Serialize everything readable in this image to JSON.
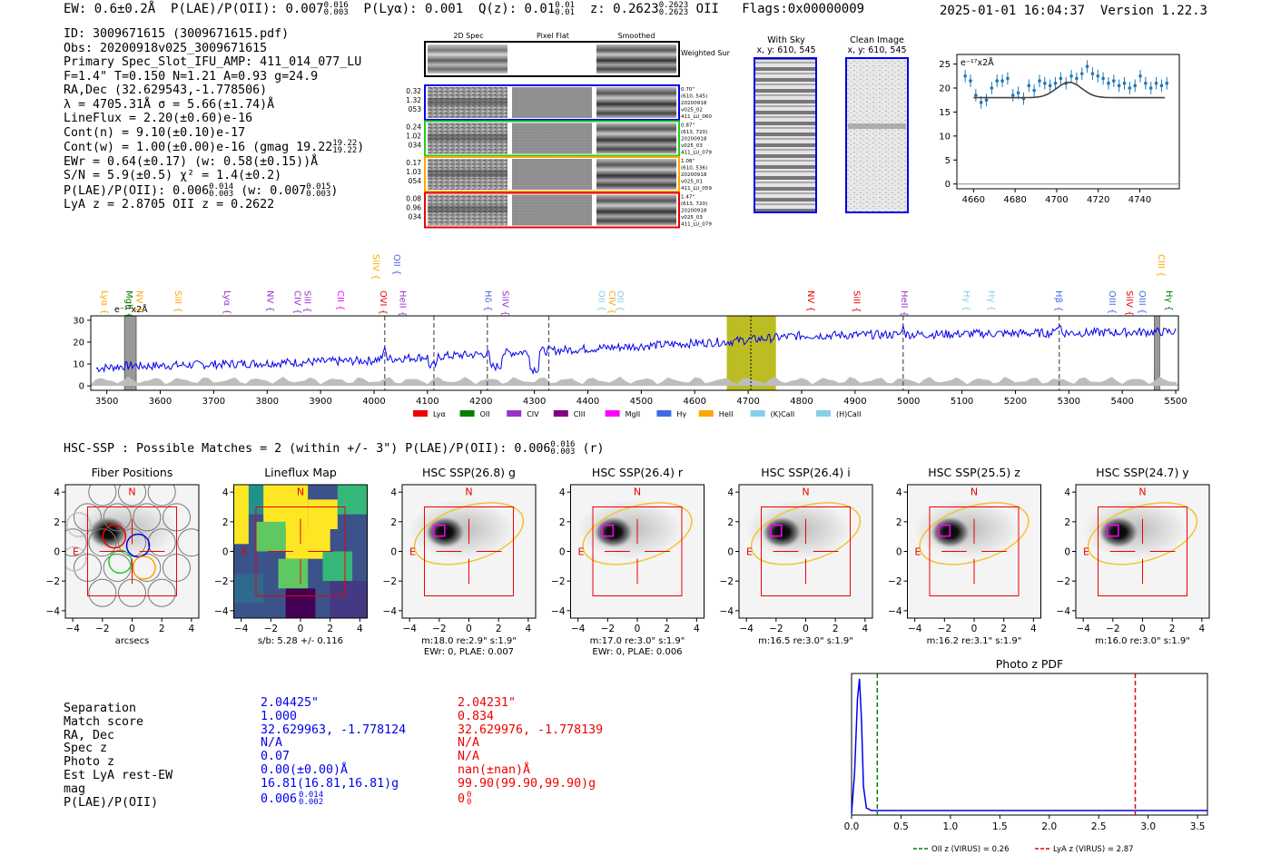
{
  "header": {
    "ew": "EW: 0.6±0.2Å",
    "plae": "P(LAE)/P(OII): 0.007",
    "plae_hi": "0.016",
    "plae_lo": "0.003",
    "plya": "P(Lyα): 0.001",
    "qz": "Q(z): 0.01",
    "qz_hi": "0.01",
    "qz_lo": "0.01",
    "z": "z: 0.2623",
    "z_hi": "0.2623",
    "z_lo": "0.2623",
    "z_line": "OII",
    "flags": "Flags:0x00000009",
    "datetime": "2025-01-01 16:04:37",
    "version": "Version 1.22.3"
  },
  "info": {
    "id": "ID: 3009671615 (3009671615.pdf)",
    "obs": "Obs: 20200918v025_3009671615",
    "primary": "Primary Spec_Slot_IFU_AMP: 411_014_077_LU",
    "fit": "F=1.4\"  T=0.150  N=1.21  A=0.93  g=24.9",
    "radec": "RA,Dec (32.629543,-1.778506)",
    "lambda": "λ = 4705.31Å  σ = 5.66(±1.74)Å",
    "lineflux": "LineFlux = 2.20(±0.60)e-16",
    "contn": "Cont(n) = 9.10(±0.10)e-17",
    "contw": "Cont(w) = 1.00(±0.00)e-16 (gmag 19.22",
    "contw_hi": "19.22",
    "contw_lo": "19.22",
    "ewr": "EWr = 0.64(±0.17) (w: 0.58(±0.15))Å",
    "sn": "S/N = 5.9(±0.5)  χ² = 1.4(±0.2)",
    "plae": "P(LAE)/P(OII): 0.006",
    "plae_a_hi": "0.014",
    "plae_a_lo": "0.003",
    "plae_w": "(w: 0.007",
    "plae_b_hi": "0.015",
    "plae_b_lo": "0.003",
    "lyaz": "LyA z = 2.8705   OII z = 0.2622"
  },
  "cutouts": {
    "col_labels": [
      "2D Spec",
      "Pixel Flat",
      "Smoothed"
    ],
    "weighted_label": "Weighted Sum",
    "rows": [
      {
        "left": [
          "0.32",
          "1.32",
          "053"
        ],
        "right": [
          "0.70\"",
          "(610, 545)",
          "20200918",
          "v025_02",
          "411_LU_060"
        ],
        "color": "#0000ee"
      },
      {
        "left": [
          "0.24",
          "1.02",
          "034"
        ],
        "right": [
          "0.87\"",
          "(613, 720)",
          "20200918",
          "v025_03",
          "411_LU_079"
        ],
        "color": "#22cc22"
      },
      {
        "left": [
          "0.17",
          "1.03",
          "054"
        ],
        "right": [
          "1.08\"",
          "(610, 536)",
          "20200918",
          "v025_01",
          "411_LU_059"
        ],
        "color": "#ffa500"
      },
      {
        "left": [
          "0.08",
          "0.96",
          "034"
        ],
        "right": [
          "1.47\"",
          "(613, 720)",
          "20200918",
          "v025_03",
          "411_LU_079"
        ],
        "color": "#ee0000"
      }
    ],
    "with_sky": [
      "With Sky",
      "x, y: 610, 545"
    ],
    "clean_image": [
      "Clean Image",
      "x, y: 610, 545"
    ]
  },
  "zoom_chart": {
    "unit": "e⁻¹⁷x2Å",
    "x_ticks": [
      4660,
      4680,
      4700,
      4720,
      4740
    ],
    "y_ticks": [
      0,
      5,
      10,
      15,
      20,
      25
    ],
    "xlim": [
      4652,
      4759
    ],
    "ylim": [
      -1,
      27
    ],
    "data_y": [
      22.5,
      21.5,
      18.5,
      17,
      17.5,
      20,
      21.5,
      21.5,
      22,
      18.5,
      19,
      17.8,
      20.5,
      19.5,
      21.5,
      21,
      20.5,
      21,
      22,
      21,
      22.5,
      22,
      23,
      24.5,
      23,
      22.5,
      22,
      21,
      21.5,
      20.5,
      21,
      20,
      20.5,
      22.5,
      21,
      20,
      21,
      20.5,
      21
    ],
    "fit_baseline": 18,
    "fit_peak": 21.2,
    "fit_center": 4706,
    "fit_sigma": 6
  },
  "spectrum": {
    "unit": "e⁻¹⁷x2Å",
    "x_ticks": [
      3500,
      3600,
      3700,
      3800,
      3900,
      4000,
      4100,
      4200,
      4300,
      4400,
      4500,
      4600,
      4700,
      4800,
      4900,
      5000,
      5100,
      5200,
      5300,
      5400,
      5500
    ],
    "y_ticks": [
      0,
      10,
      20,
      30
    ],
    "xlim": [
      3470,
      5505
    ],
    "ylim": [
      -2,
      32
    ],
    "highlight": [
      4660,
      4752
    ],
    "center_line": 4705,
    "dashed_lines": [
      4020,
      4112,
      4212,
      4327,
      4990,
      5282
    ],
    "masked": [
      [
        3533,
        3555
      ],
      [
        5460,
        5470
      ]
    ],
    "line_labels": [
      {
        "t": "Lyα",
        "x": 3490,
        "c": "#ffa500",
        "row": 0
      },
      {
        "t": "MgII",
        "x": 3536,
        "c": "#008000",
        "row": 0
      },
      {
        "t": "NV",
        "x": 3556,
        "c": "#ffa500",
        "row": 0
      },
      {
        "t": "SiII",
        "x": 3628,
        "c": "#ffa500",
        "row": 0
      },
      {
        "t": "Lyα",
        "x": 3720,
        "c": "#9932cc",
        "row": 0
      },
      {
        "t": "NV",
        "x": 3800,
        "c": "#9932cc",
        "row": 0
      },
      {
        "t": "CIV",
        "x": 3851,
        "c": "#9932cc",
        "row": 0
      },
      {
        "t": "SiII",
        "x": 3870,
        "c": "#9932cc",
        "row": 0
      },
      {
        "t": "CII",
        "x": 3932,
        "c": "#ff00ff",
        "row": 0
      },
      {
        "t": "OVI",
        "x": 4012,
        "c": "#ee0000",
        "row": 0
      },
      {
        "t": "HeII",
        "x": 4048,
        "c": "#9932cc",
        "row": 0
      },
      {
        "t": "SiIV",
        "x": 3998,
        "c": "#ffa500",
        "row": 2
      },
      {
        "t": "OII",
        "x": 4037,
        "c": "#4169e1",
        "row": 2
      },
      {
        "t": "Hδ",
        "x": 4208,
        "c": "#4169e1",
        "row": 0
      },
      {
        "t": "SiIV",
        "x": 4240,
        "c": "#9932cc",
        "row": 0
      },
      {
        "t": "OII",
        "x": 4420,
        "c": "#87ceeb",
        "row": 0
      },
      {
        "t": "CIV",
        "x": 4440,
        "c": "#ffa500",
        "row": 0
      },
      {
        "t": "OII",
        "x": 4455,
        "c": "#87ceeb",
        "row": 0
      },
      {
        "t": "NV",
        "x": 4812,
        "c": "#ee0000",
        "row": 0
      },
      {
        "t": "SiII",
        "x": 4898,
        "c": "#ee0000",
        "row": 0
      },
      {
        "t": "HeII",
        "x": 4987,
        "c": "#9932cc",
        "row": 0
      },
      {
        "t": "Hγ",
        "x": 5103,
        "c": "#87ceeb",
        "row": 0
      },
      {
        "t": "Hγ",
        "x": 5150,
        "c": "#87ceeb",
        "row": 0
      },
      {
        "t": "Hβ",
        "x": 5276,
        "c": "#4169e1",
        "row": 0
      },
      {
        "t": "OIII",
        "x": 5376,
        "c": "#4169e1",
        "row": 0
      },
      {
        "t": "SiIV",
        "x": 5408,
        "c": "#ee0000",
        "row": 0
      },
      {
        "t": "OIII",
        "x": 5432,
        "c": "#4169e1",
        "row": 0
      },
      {
        "t": "CIII",
        "x": 5468,
        "c": "#ffa500",
        "row": 2
      },
      {
        "t": "Hγ",
        "x": 5482,
        "c": "#008000",
        "row": 0
      }
    ],
    "legend": [
      {
        "t": "Lyα",
        "c": "#ee0000"
      },
      {
        "t": "OII",
        "c": "#008000"
      },
      {
        "t": "CIV",
        "c": "#9932cc"
      },
      {
        "t": "CIII",
        "c": "#800080"
      },
      {
        "t": "MgII",
        "c": "#ff00ff"
      },
      {
        "t": "Hγ",
        "c": "#4169e1"
      },
      {
        "t": "HeII",
        "c": "#ffa500"
      },
      {
        "t": "(K)CaII",
        "c": "#87ceeb"
      },
      {
        "t": "(H)CaII",
        "c": "#87ceeb"
      }
    ]
  },
  "hsc": {
    "title": "HSC-SSP : Possible Matches = 2 (within +/- 3\")  P(LAE)/P(OII): 0.006",
    "title_hi": "0.016",
    "title_lo": "0.003",
    "title_band": "(r)",
    "panels": [
      {
        "title": "Fiber Positions",
        "caption": [
          "arcsecs"
        ],
        "kind": "fiber"
      },
      {
        "title": "Lineflux Map",
        "caption": [
          "s/b: 5.28 +/- 0.116"
        ],
        "kind": "lineflux"
      },
      {
        "title": "HSC SSP(26.8) g",
        "caption": [
          "m:18.0  re:2.9\"  s:1.9\"",
          "EWr: 0, PLAE: 0.007"
        ],
        "kind": "hsc"
      },
      {
        "title": "HSC SSP(26.4) r",
        "caption": [
          "m:17.0  re:3.0\"  s:1.9\"",
          "EWr: 0, PLAE: 0.006"
        ],
        "kind": "hsc"
      },
      {
        "title": "HSC SSP(26.4) i",
        "caption": [
          "m:16.5  re:3.0\"  s:1.9\""
        ],
        "kind": "hsc"
      },
      {
        "title": "HSC SSP(25.5) z",
        "caption": [
          "m:16.2  re:3.1\"  s:1.9\""
        ],
        "kind": "hsc"
      },
      {
        "title": "HSC SSP(24.7) y",
        "caption": [
          "m:16.0  re:3.0\"  s:1.9\""
        ],
        "kind": "hsc"
      }
    ],
    "ticks": [
      -4,
      -2,
      0,
      2,
      4
    ],
    "compass_n": "N",
    "compass_e": "E"
  },
  "matches": {
    "labels": [
      "Separation",
      "Match score",
      "RA, Dec",
      "Spec z",
      "Photo z",
      "Est LyA rest-EW",
      "mag",
      "P(LAE)/P(OII)"
    ],
    "col1": [
      "2.04425\"",
      "1.000",
      "32.629963, -1.778124",
      "N/A",
      "0.07",
      "0.00(±0.00)Å",
      "16.81(16.81,16.81)g",
      "0.006"
    ],
    "col1_plae_hi": "0.014",
    "col1_plae_lo": "0.002",
    "col2": [
      "2.04231\"",
      "0.834",
      "32.629976, -1.778139",
      "N/A",
      "N/A",
      "nan(±nan)Å",
      "99.90(99.90,99.90)g",
      "0"
    ],
    "col2_plae_hi": "0",
    "col2_plae_lo": "0"
  },
  "chart_data": [
    {
      "type": "line",
      "title": "Photo z PDF",
      "xlim": [
        0.0,
        3.6
      ],
      "x_ticks": [
        0.0,
        0.5,
        1.0,
        1.5,
        2.0,
        2.5,
        3.0,
        3.5
      ],
      "series": [
        {
          "name": "pdf",
          "x": [
            0.0,
            0.03,
            0.06,
            0.08,
            0.1,
            0.12,
            0.15,
            0.2,
            0.3,
            3.6
          ],
          "values": [
            0.0,
            0.3,
            0.85,
            1.0,
            0.7,
            0.2,
            0.04,
            0.02,
            0.02,
            0.02
          ]
        }
      ],
      "vlines": [
        {
          "x": 0.26,
          "label": "OII z (VIRUS) = 0.26",
          "color": "#008000"
        },
        {
          "x": 2.87,
          "label": "LyA z (VIRUS) = 2.87",
          "color": "#ee0000"
        }
      ]
    }
  ]
}
